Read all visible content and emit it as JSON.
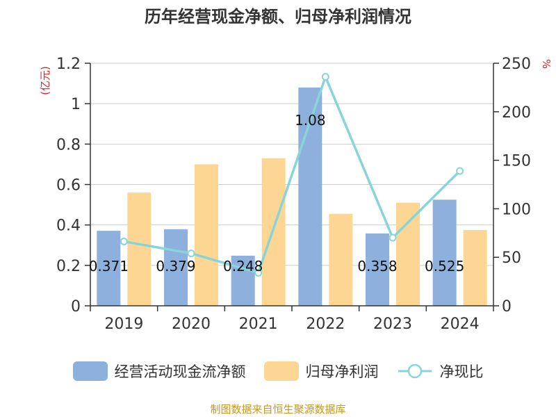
{
  "title": "历年经营现金净额、归母净利润情况",
  "source": "制图数据来自恒生聚源数据库",
  "colors": {
    "cash_flow": "#8eb0dd",
    "net_profit": "#fdd694",
    "ratio": "#88d4d8",
    "grid": "#cccccc",
    "axis": "#333333",
    "unit_label": "#e02020",
    "source_text": "#c8961e"
  },
  "chart_data": {
    "type": "bar",
    "title": "历年经营现金净额、归母净利润情况",
    "categories": [
      "2019",
      "2020",
      "2021",
      "2022",
      "2023",
      "2024"
    ],
    "left_axis": {
      "unit_label": "(亿元)",
      "ylim": [
        0,
        1.2
      ],
      "ticks": [
        "0",
        "0.2",
        "0.4",
        "0.6",
        "0.8",
        "1",
        "1.2"
      ],
      "tick_values": [
        0,
        0.2,
        0.4,
        0.6,
        0.8,
        1.0,
        1.2
      ]
    },
    "right_axis": {
      "unit_label": "%",
      "ylim": [
        0,
        250
      ],
      "ticks": [
        "0",
        "50",
        "100",
        "150",
        "200",
        "250"
      ],
      "tick_values": [
        0,
        50,
        100,
        150,
        200,
        250
      ]
    },
    "grid": true,
    "legend_position": "bottom",
    "series": [
      {
        "name": "经营活动现金流净额",
        "type": "bar",
        "axis": "left",
        "values": [
          0.371,
          0.379,
          0.248,
          1.08,
          0.358,
          0.525
        ],
        "labels": [
          "0.371",
          "0.379",
          "0.248",
          "1.08",
          "0.358",
          "0.525"
        ]
      },
      {
        "name": "归母净利润",
        "type": "bar",
        "axis": "left",
        "values": [
          0.56,
          0.7,
          0.73,
          0.455,
          0.51,
          0.375
        ]
      },
      {
        "name": "净现比",
        "type": "line",
        "axis": "right",
        "values": [
          66.3,
          54.0,
          34.0,
          236.0,
          70.2,
          139.0
        ]
      }
    ]
  }
}
